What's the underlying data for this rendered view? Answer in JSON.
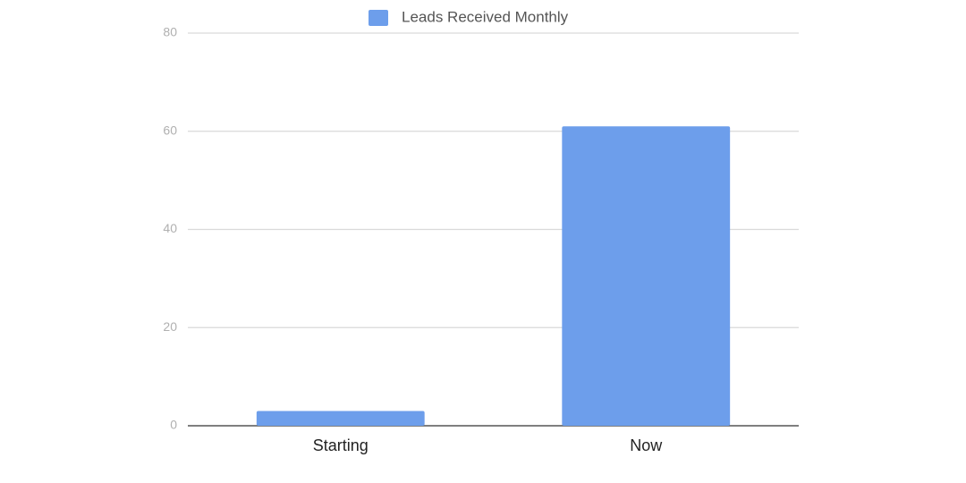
{
  "chart_data": {
    "type": "bar",
    "categories": [
      "Starting",
      "Now"
    ],
    "series": [
      {
        "name": "Leads Received Monthly",
        "color": "#6d9eeb",
        "values": [
          3,
          61
        ]
      }
    ],
    "ylim": [
      0,
      80
    ],
    "yticks": [
      0,
      20,
      40,
      60,
      80
    ],
    "grid": true,
    "legend": "top"
  }
}
